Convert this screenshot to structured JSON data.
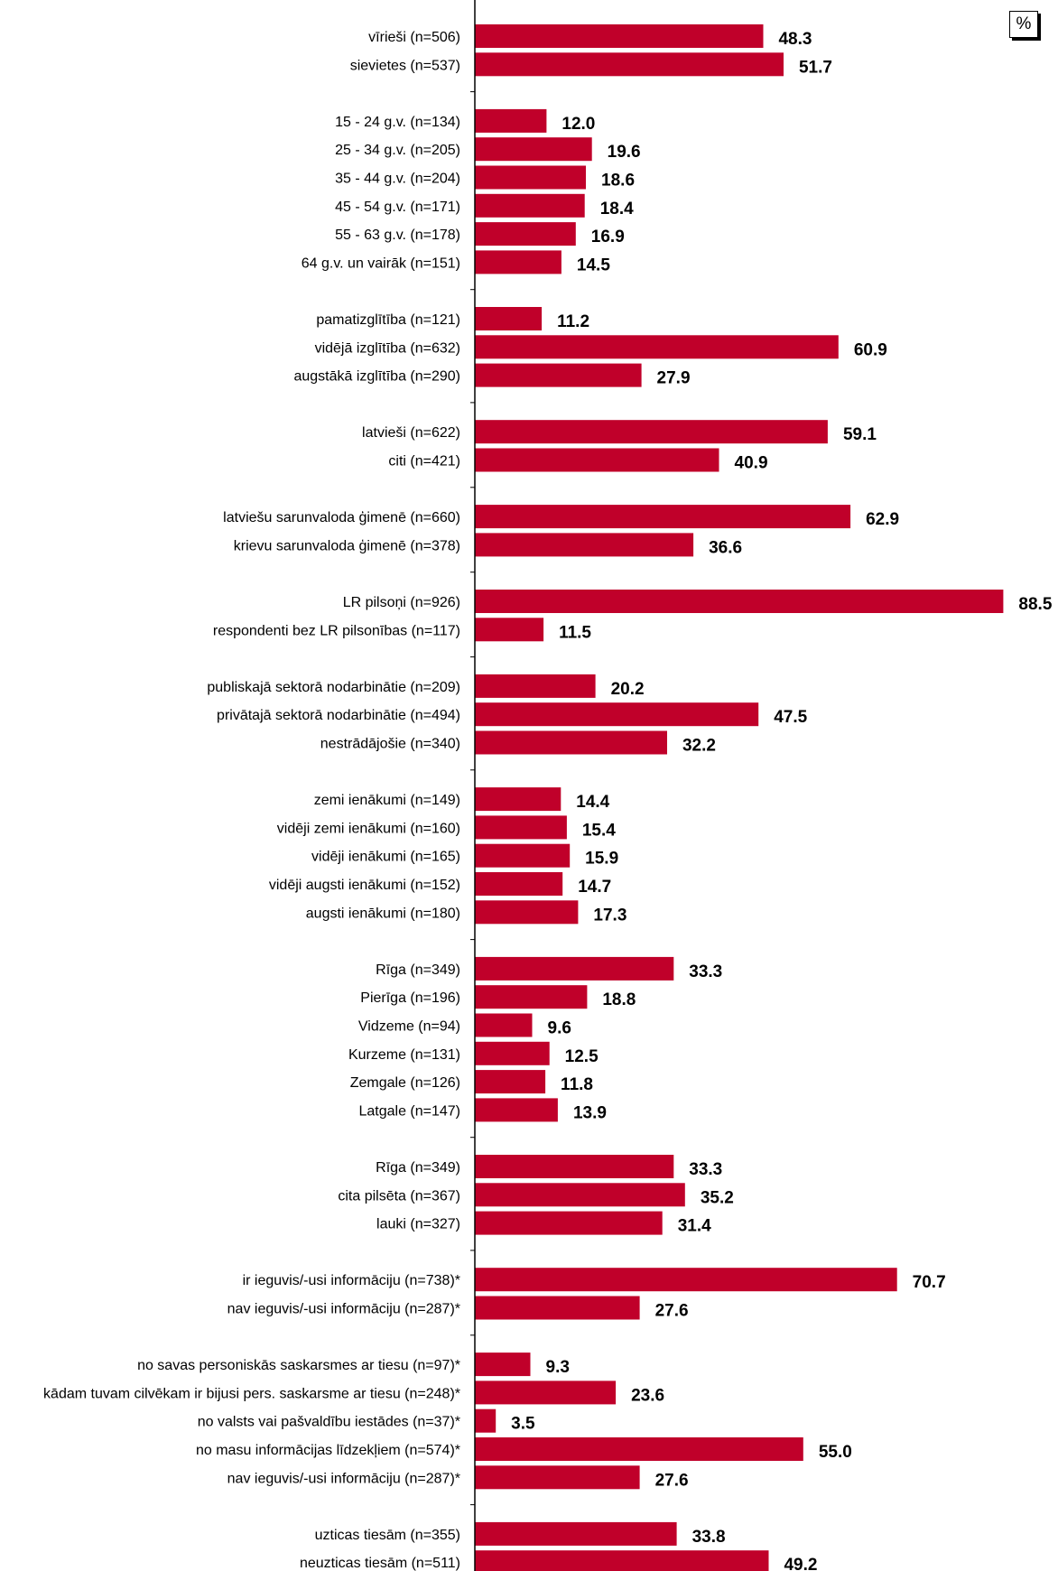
{
  "unit_label": "%",
  "colors": {
    "bar": "#C0002A",
    "axis": "#000000"
  },
  "chart_data": {
    "type": "bar",
    "orientation": "horizontal",
    "xlim": [
      0,
      100
    ],
    "grid": false,
    "legend": "none",
    "groups": [
      {
        "items": [
          {
            "label": "vīrieši (n=506)",
            "value": 48.3
          },
          {
            "label": "sievietes (n=537)",
            "value": 51.7
          }
        ]
      },
      {
        "items": [
          {
            "label": "15 - 24 g.v. (n=134)",
            "value": 12.0
          },
          {
            "label": "25 - 34 g.v. (n=205)",
            "value": 19.6
          },
          {
            "label": "35 - 44 g.v. (n=204)",
            "value": 18.6
          },
          {
            "label": "45 - 54 g.v. (n=171)",
            "value": 18.4
          },
          {
            "label": "55 - 63 g.v. (n=178)",
            "value": 16.9
          },
          {
            "label": "64 g.v. un vairāk (n=151)",
            "value": 14.5
          }
        ]
      },
      {
        "items": [
          {
            "label": "pamatizglītība (n=121)",
            "value": 11.2
          },
          {
            "label": "vidējā izglītība (n=632)",
            "value": 60.9
          },
          {
            "label": "augstākā izglītība (n=290)",
            "value": 27.9
          }
        ]
      },
      {
        "items": [
          {
            "label": "latvieši (n=622)",
            "value": 59.1
          },
          {
            "label": "citi (n=421)",
            "value": 40.9
          }
        ]
      },
      {
        "items": [
          {
            "label": "latviešu sarunvaloda ģimenē (n=660)",
            "value": 62.9
          },
          {
            "label": "krievu sarunvaloda ģimenē (n=378)",
            "value": 36.6
          }
        ]
      },
      {
        "items": [
          {
            "label": "LR pilsoņi (n=926)",
            "value": 88.5
          },
          {
            "label": "respondenti bez LR pilsonības (n=117)",
            "value": 11.5
          }
        ]
      },
      {
        "items": [
          {
            "label": "publiskajā sektorā nodarbinātie (n=209)",
            "value": 20.2
          },
          {
            "label": "privātajā sektorā nodarbinātie (n=494)",
            "value": 47.5
          },
          {
            "label": "nestrādājošie (n=340)",
            "value": 32.2
          }
        ]
      },
      {
        "items": [
          {
            "label": "zemi ienākumi (n=149)",
            "value": 14.4
          },
          {
            "label": "vidēji zemi ienākumi (n=160)",
            "value": 15.4
          },
          {
            "label": "vidēji ienākumi (n=165)",
            "value": 15.9
          },
          {
            "label": "vidēji augsti ienākumi (n=152)",
            "value": 14.7
          },
          {
            "label": "augsti ienākumi (n=180)",
            "value": 17.3
          }
        ]
      },
      {
        "items": [
          {
            "label": "Rīga (n=349)",
            "value": 33.3
          },
          {
            "label": "Pierīga (n=196)",
            "value": 18.8
          },
          {
            "label": "Vidzeme (n=94)",
            "value": 9.6
          },
          {
            "label": "Kurzeme (n=131)",
            "value": 12.5
          },
          {
            "label": "Zemgale (n=126)",
            "value": 11.8
          },
          {
            "label": "Latgale (n=147)",
            "value": 13.9
          }
        ]
      },
      {
        "items": [
          {
            "label": "Rīga (n=349)",
            "value": 33.3
          },
          {
            "label": "cita pilsēta (n=367)",
            "value": 35.2
          },
          {
            "label": "lauki (n=327)",
            "value": 31.4
          }
        ]
      },
      {
        "items": [
          {
            "label": "ir ieguvis/-usi informāciju (n=738)*",
            "value": 70.7
          },
          {
            "label": "nav ieguvis/-usi informāciju (n=287)*",
            "value": 27.6
          }
        ]
      },
      {
        "items": [
          {
            "label": "no savas personiskās saskarsmes ar tiesu (n=97)*",
            "value": 9.3
          },
          {
            "label": "kādam tuvam cilvēkam ir bijusi pers. saskarsme ar tiesu (n=248)*",
            "value": 23.6
          },
          {
            "label": "no valsts vai pašvaldību iestādes (n=37)*",
            "value": 3.5
          },
          {
            "label": "no masu informācijas līdzekļiem (n=574)*",
            "value": 55.0
          },
          {
            "label": "nav ieguvis/-usi informāciju (n=287)*",
            "value": 27.6
          }
        ]
      },
      {
        "items": [
          {
            "label": "uzticas tiesām (n=355)",
            "value": 33.8
          },
          {
            "label": "neuzticas tiesām (n=511)",
            "value": 49.2
          }
        ]
      }
    ]
  }
}
